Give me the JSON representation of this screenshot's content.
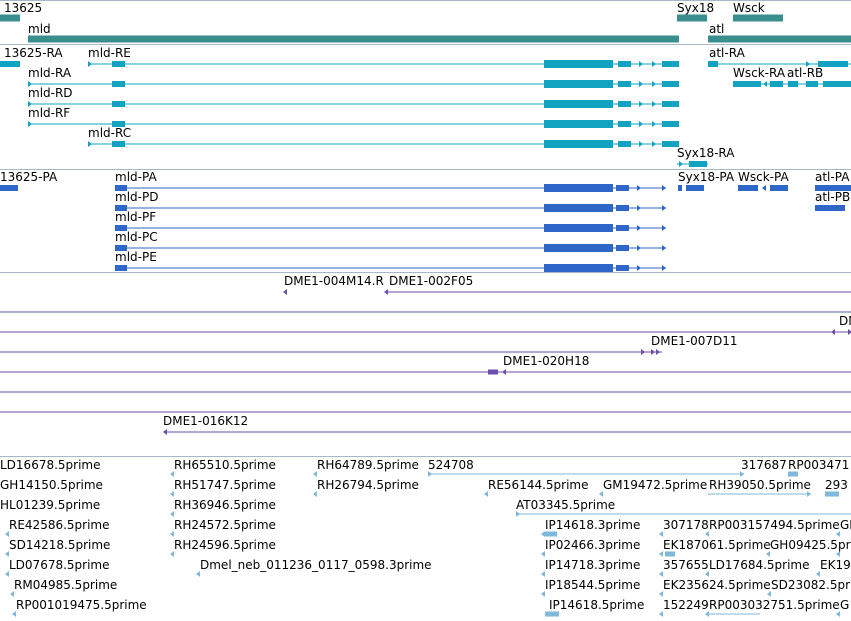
{
  "colors": {
    "gene": "#3a8e8e",
    "mrna": "#11a3bf",
    "protein": "#2f67c8",
    "bac": "#6b4fa8",
    "est": "#7fb8da",
    "separator": "#a8b6c6",
    "background": "#ffffff"
  },
  "tracks": {
    "genes": {
      "labels": [
        "13625",
        "mld",
        "Syx18",
        "Wsck",
        "atl"
      ]
    },
    "transcripts": {
      "labels": [
        "13625-RA",
        "mld-RE",
        "mld-RA",
        "mld-RD",
        "mld-RF",
        "mld-RC",
        "atl-RA",
        "Wsck-RA",
        "atl-RB",
        "Syx18-RA"
      ]
    },
    "proteins": {
      "labels": [
        "13625-PA",
        "mld-PA",
        "mld-PD",
        "mld-PF",
        "mld-PC",
        "mld-PE",
        "Syx18-PA",
        "Wsck-PA",
        "atl-PA",
        "atl-PB"
      ]
    },
    "bacs": {
      "labels": [
        "DME1-004M14.R",
        "DME1-002F05",
        "DM",
        "DME1-007D11",
        "DME1-020H18",
        "DME1-016K12"
      ]
    },
    "ests": {
      "labels": [
        "LD16678.5prime",
        "RH65510.5prime",
        "RH64789.5prime",
        "524708",
        "317687",
        "RP003471",
        "GH14150.5prime",
        "RH51747.5prime",
        "RH26794.5prime",
        "RE56144.5prime",
        "GM19472.5prime",
        "RH39050.5prime",
        "293",
        "HL01239.5prime",
        "RH36946.5prime",
        "AT03345.5prime",
        "RE42586.5prime",
        "RH24572.5prime",
        "IP14618.3prime",
        "307178",
        "RP003157494.5prime",
        "GI",
        "SD14218.5prime",
        "RH24596.5prime",
        "IP02466.3prime",
        "EK187061.5prime",
        "GH09425.5prime",
        "LD07678.5prime",
        "Dmel_neb_011236_0117_0598.3prime",
        "IP14718.3prime",
        "357655",
        "LD17684.5prime",
        "EK19",
        "RM04985.5prime",
        "IP18544.5prime",
        "EK235624.5prime",
        "SD23082.5prime",
        "RP001019475.5prime",
        "IP14618.5prime",
        "152249",
        "RP003032751.5prime",
        "G"
      ]
    }
  }
}
